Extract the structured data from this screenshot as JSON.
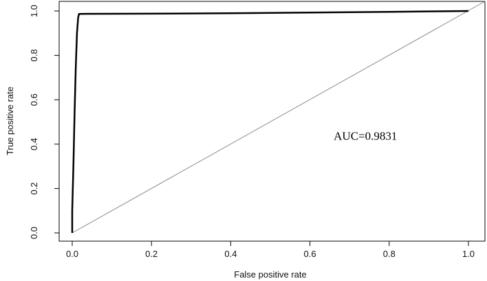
{
  "chart_data": {
    "type": "line",
    "title": "",
    "xlabel": "False positive rate",
    "ylabel": "True positive rate",
    "xlim": [
      0,
      1
    ],
    "ylim": [
      0,
      1
    ],
    "x_ticks": [
      "0.0",
      "0.2",
      "0.4",
      "0.6",
      "0.8",
      "1.0"
    ],
    "y_ticks": [
      "0.0",
      "0.2",
      "0.4",
      "0.6",
      "0.8",
      "1.0"
    ],
    "grid": false,
    "series": [
      {
        "name": "",
        "color": "#000000",
        "x": [
          0.0,
          0.0,
          0.003,
          0.006,
          0.009,
          0.012,
          0.015,
          0.017,
          0.017,
          0.2,
          0.4,
          0.6,
          0.8,
          0.9,
          1.0
        ],
        "y": [
          0.0,
          0.1,
          0.3,
          0.55,
          0.75,
          0.9,
          0.97,
          0.985,
          0.987,
          0.988,
          0.99,
          0.993,
          0.996,
          0.998,
          1.0
        ]
      }
    ],
    "reference_line": {
      "x": [
        0,
        1
      ],
      "y": [
        0,
        1
      ],
      "color": "#8a8a8a"
    },
    "annotation": {
      "text": "AUC=0.9831",
      "x": 0.66,
      "y": 0.42
    }
  }
}
